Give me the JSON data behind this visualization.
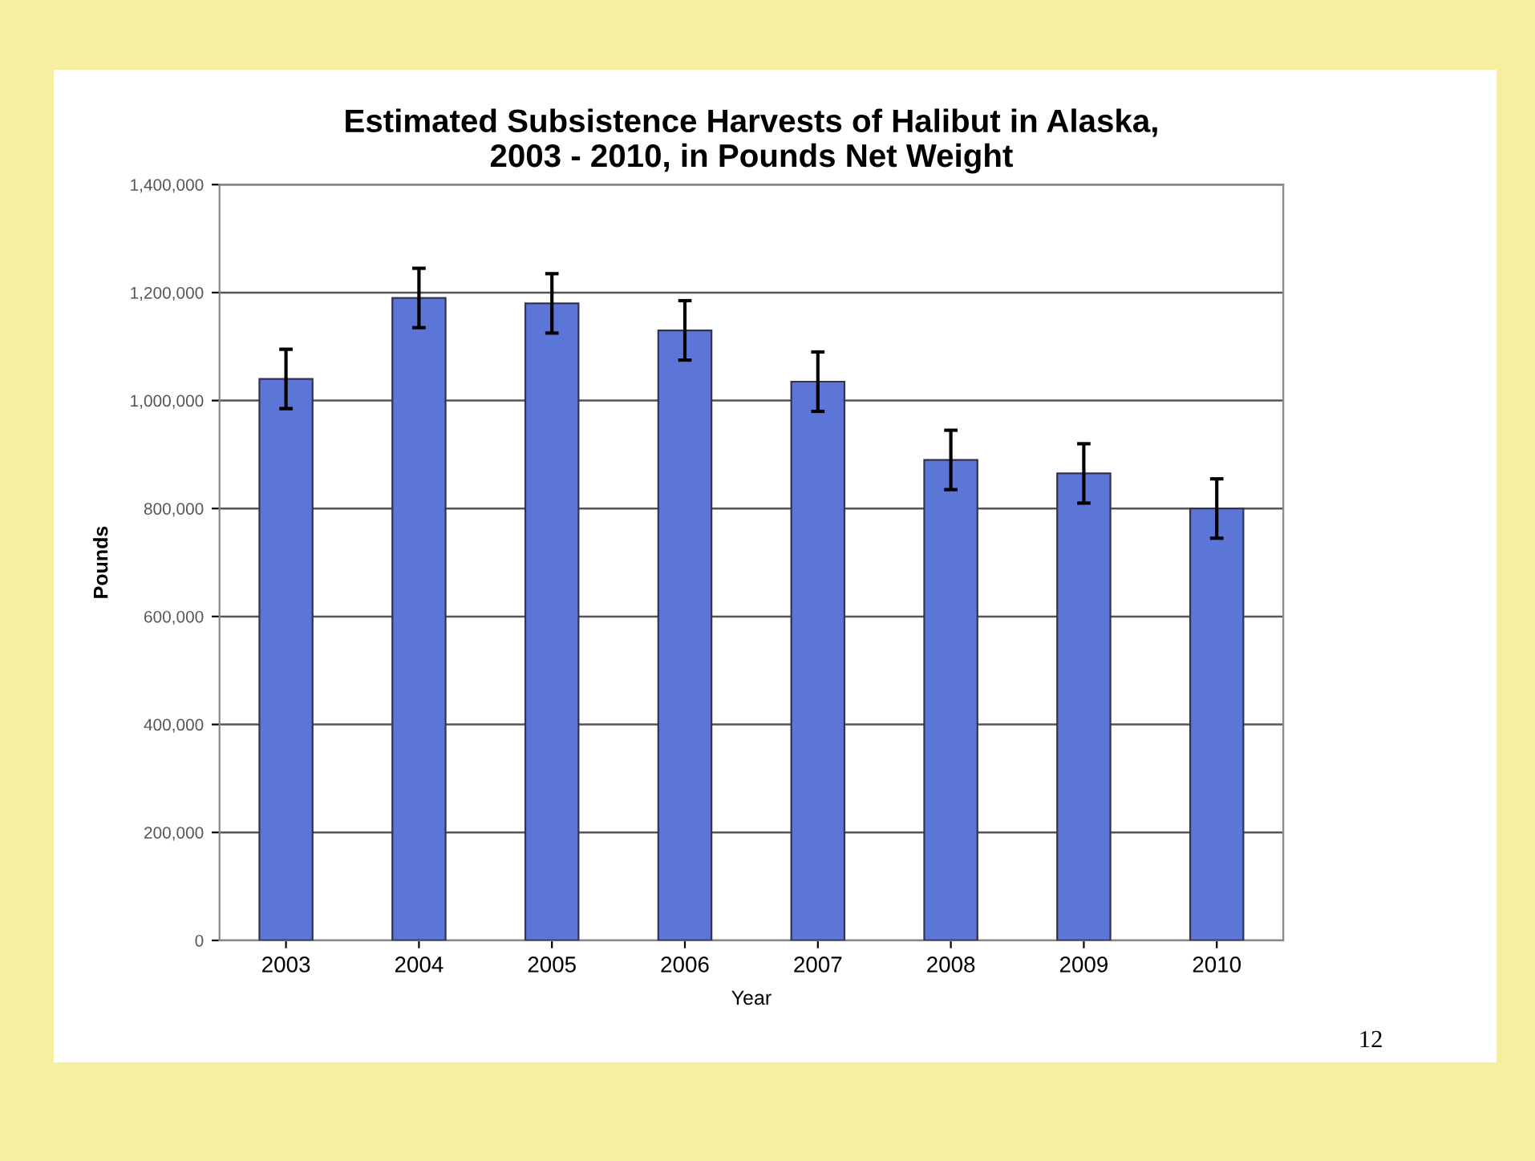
{
  "chart_data": {
    "type": "bar",
    "title": "Estimated Subsistence Harvests of Halibut in Alaska,\n2003 - 2010, in Pounds Net Weight",
    "xlabel": "Year",
    "ylabel": "Pounds",
    "categories": [
      "2003",
      "2004",
      "2005",
      "2006",
      "2007",
      "2008",
      "2009",
      "2010"
    ],
    "values": [
      1040000,
      1190000,
      1180000,
      1130000,
      1035000,
      890000,
      865000,
      800000
    ],
    "errors": [
      55000,
      55000,
      55000,
      55000,
      55000,
      55000,
      55000,
      55000
    ],
    "color": "#5b76d6",
    "ylim": [
      0,
      1400000
    ],
    "yticks": [
      {
        "value": 0,
        "label": "0"
      },
      {
        "value": 200000,
        "label": "200,000"
      },
      {
        "value": 400000,
        "label": "400,000"
      },
      {
        "value": 600000,
        "label": "600,000"
      },
      {
        "value": 800000,
        "label": "800,000"
      },
      {
        "value": 1000000,
        "label": "1,000,000"
      },
      {
        "value": 1200000,
        "label": "1,200,000"
      },
      {
        "value": 1400000,
        "label": "1,400,000"
      }
    ],
    "grid": "y",
    "annotations": [
      "12"
    ]
  }
}
